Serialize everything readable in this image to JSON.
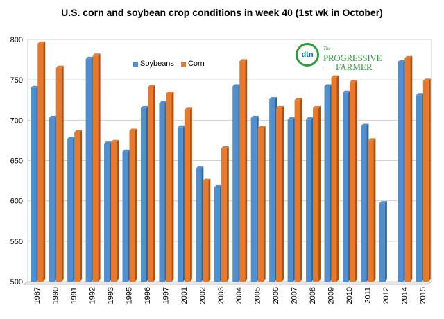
{
  "chart_data": {
    "type": "bar",
    "title": "U.S. corn and soybean crop conditions in week 40 (1st wk in October)",
    "categories": [
      "1987",
      "1990",
      "1991",
      "1992",
      "1993",
      "1995",
      "1996",
      "1997",
      "2001",
      "2002",
      "2003",
      "2004",
      "2005",
      "2006",
      "2007",
      "2008",
      "2009",
      "2010",
      "2011",
      "2012",
      "2014",
      "2015"
    ],
    "series": [
      {
        "name": "Soybeans",
        "color": "#4f8fcf",
        "values": [
          740,
          703,
          677,
          776,
          671,
          661,
          715,
          721,
          691,
          640,
          617,
          742,
          703,
          726,
          701,
          701,
          742,
          734,
          693,
          597,
          772,
          731
        ]
      },
      {
        "name": "Corn",
        "color": "#e8782a",
        "values": [
          795,
          765,
          685,
          780,
          673,
          687,
          741,
          733,
          713,
          625,
          665,
          773,
          690,
          715,
          725,
          715,
          753,
          747,
          675,
          null,
          777,
          749
        ]
      }
    ],
    "ylim": [
      500,
      800
    ],
    "yticks": [
      500,
      550,
      600,
      650,
      700,
      750,
      800
    ],
    "grid": true,
    "legend": "top-left",
    "xlabel": "",
    "ylabel": ""
  },
  "legend": {
    "soybeans_label": "Soybeans",
    "corn_label": "Corn"
  },
  "logo": {
    "dtn": "dtn",
    "the": "The",
    "line1": "PROGRESSIVE",
    "line2": "FARMER"
  }
}
